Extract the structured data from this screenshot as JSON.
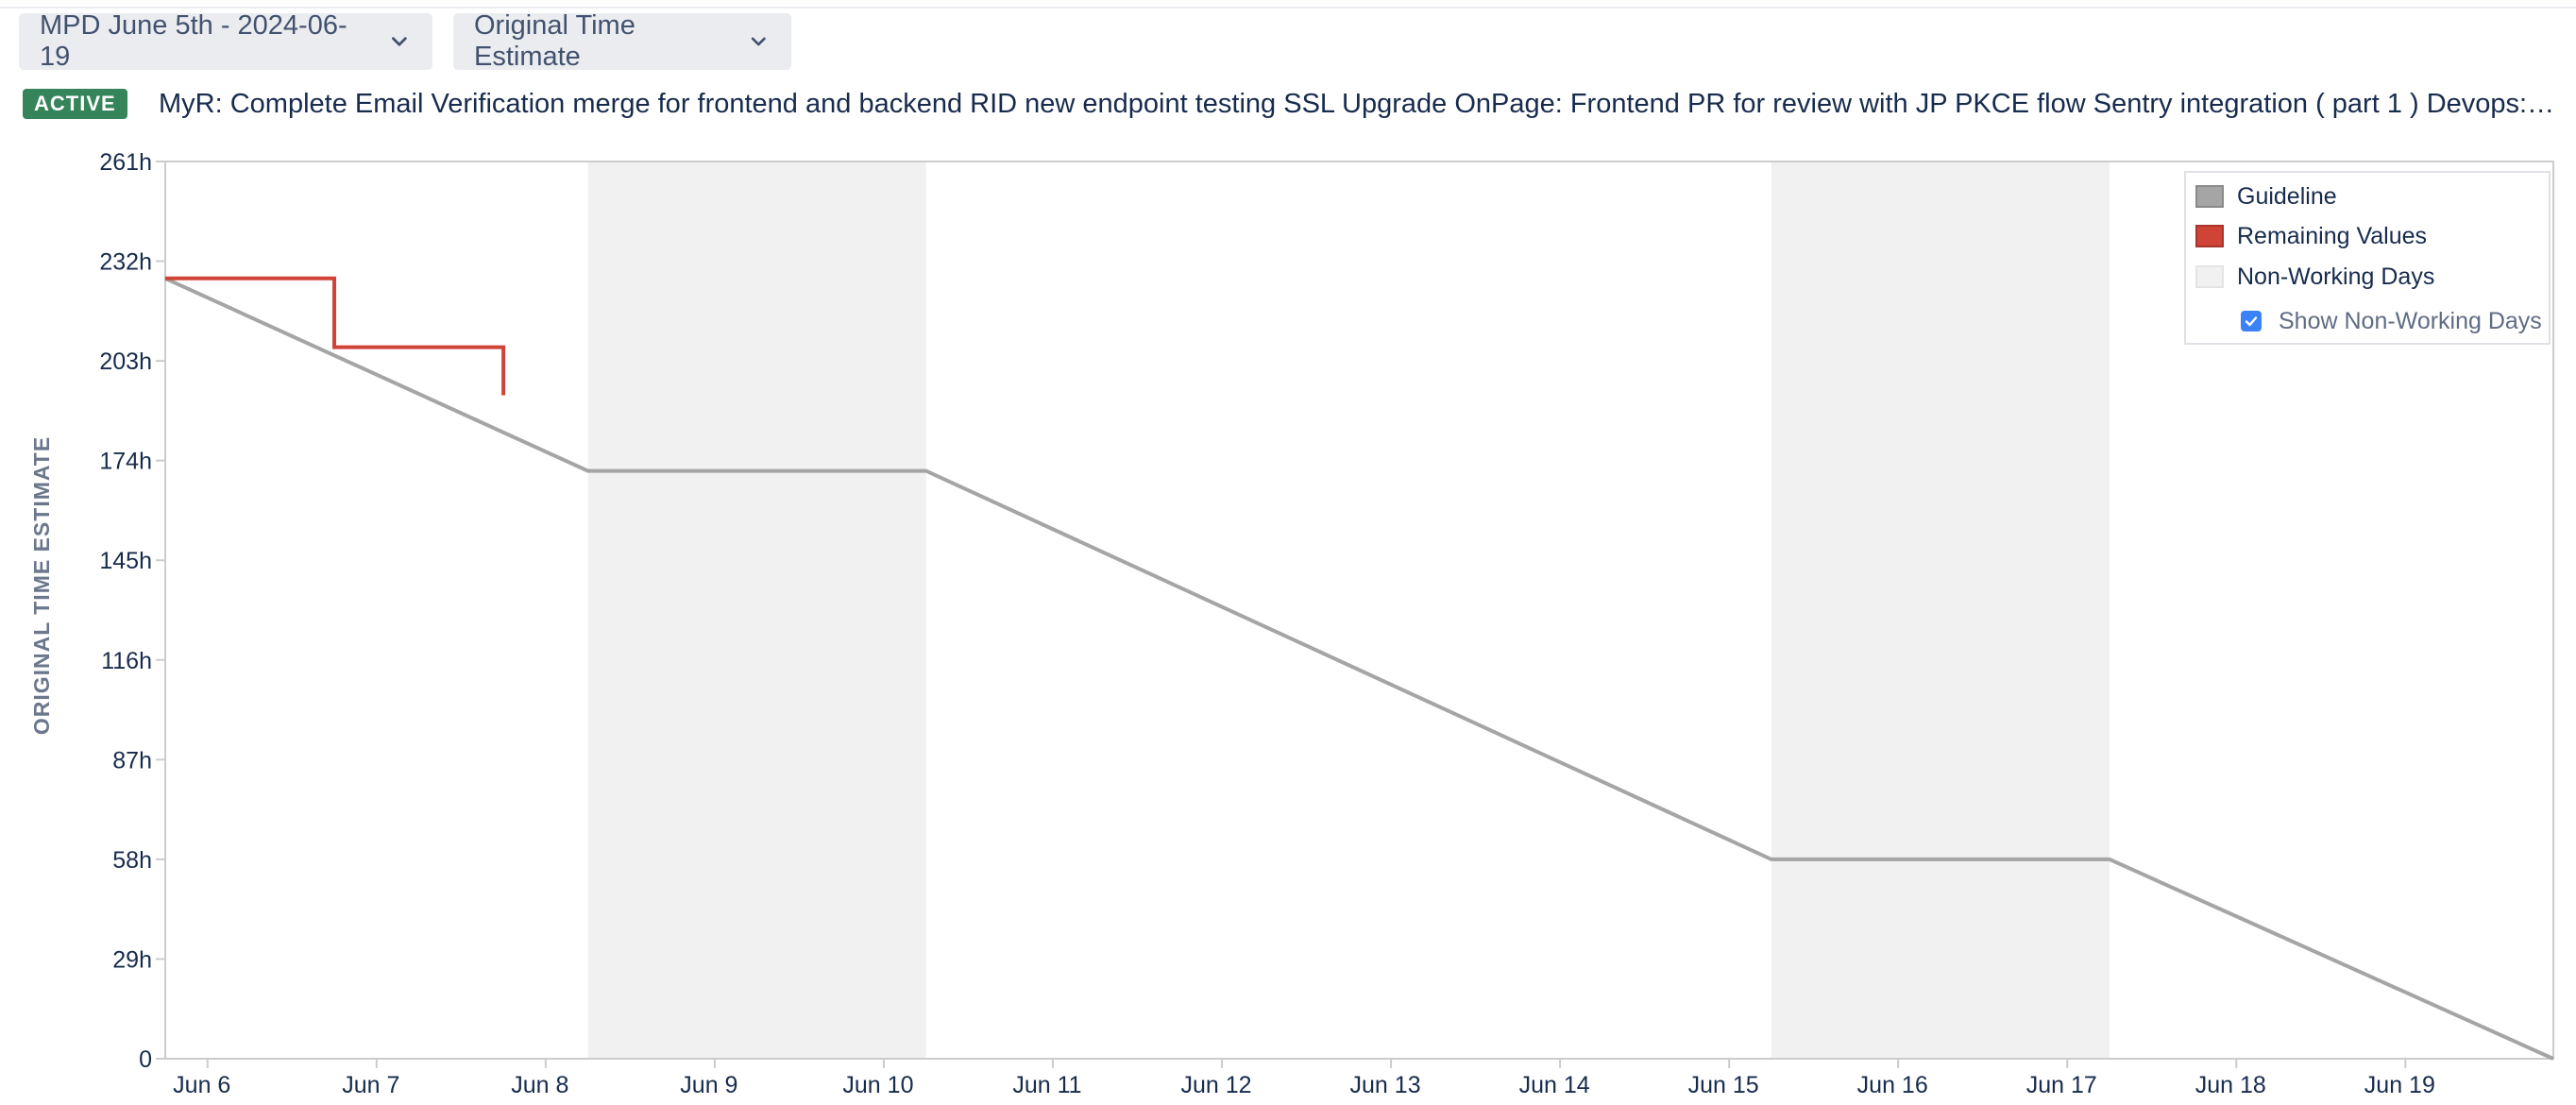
{
  "header": {
    "sprint_select": "MPD June 5th - 2024-06-19",
    "estimate_select": "Original Time Estimate",
    "status_badge": "ACTIVE",
    "sprint_goal": "MyR: Complete Email Verification merge for frontend and backend RID new endpoint testing SSL Upgrade OnPage: Frontend PR for review with JP PKCE flow Sentry integration ( part 1 ) Devops: Fl..."
  },
  "legend": {
    "guideline": "Guideline",
    "remaining": "Remaining Values",
    "non_working": "Non-Working Days",
    "show_non_working": "Show Non-Working Days",
    "show_non_working_checked": true
  },
  "colors": {
    "guideline": "#a5a5a5",
    "remaining": "#d04437",
    "non_working": "#f1f1f1",
    "checkbox": "#3b82f6"
  },
  "chart_data": {
    "type": "line",
    "ylabel": "ORIGINAL TIME ESTIMATE",
    "xlabel": "",
    "ylim": [
      0,
      261
    ],
    "y_ticks": [
      "0",
      "29h",
      "58h",
      "87h",
      "116h",
      "145h",
      "174h",
      "203h",
      "232h",
      "261h"
    ],
    "y_tick_values": [
      0,
      29,
      58,
      87,
      116,
      145,
      174,
      203,
      232,
      261
    ],
    "x_ticks": [
      "Jun 6",
      "Jun 7",
      "Jun 8",
      "Jun 9",
      "Jun 10",
      "Jun 11",
      "Jun 12",
      "Jun 13",
      "Jun 14",
      "Jun 15",
      "Jun 16",
      "Jun 17",
      "Jun 18",
      "Jun 19"
    ],
    "x_tick_dates": [
      "2024-06-06",
      "2024-06-07",
      "2024-06-08",
      "2024-06-09",
      "2024-06-10",
      "2024-06-11",
      "2024-06-12",
      "2024-06-13",
      "2024-06-14",
      "2024-06-15",
      "2024-06-16",
      "2024-06-17",
      "2024-06-18",
      "2024-06-19"
    ],
    "xlim": [
      "2024-06-05 18:00",
      "2024-06-19 21:00"
    ],
    "non_working_periods": [
      [
        "2024-06-08 06:00",
        "2024-06-10 06:00"
      ],
      [
        "2024-06-15 06:00",
        "2024-06-17 06:00"
      ]
    ],
    "series": [
      {
        "name": "Guideline",
        "points": [
          {
            "x": "2024-06-05 18:00",
            "y": 227
          },
          {
            "x": "2024-06-08 06:00",
            "y": 171
          },
          {
            "x": "2024-06-10 06:00",
            "y": 171
          },
          {
            "x": "2024-06-15 06:00",
            "y": 58
          },
          {
            "x": "2024-06-17 06:00",
            "y": 58
          },
          {
            "x": "2024-06-19 21:00",
            "y": 0
          }
        ]
      },
      {
        "name": "Remaining Values",
        "step": true,
        "points": [
          {
            "x": "2024-06-05 18:00",
            "y": 227
          },
          {
            "x": "2024-06-06 18:00",
            "y": 227
          },
          {
            "x": "2024-06-06 18:00",
            "y": 207
          },
          {
            "x": "2024-06-07 18:00",
            "y": 207
          },
          {
            "x": "2024-06-07 18:00",
            "y": 193
          }
        ]
      }
    ],
    "grid": false,
    "legend_position": "top-right"
  }
}
